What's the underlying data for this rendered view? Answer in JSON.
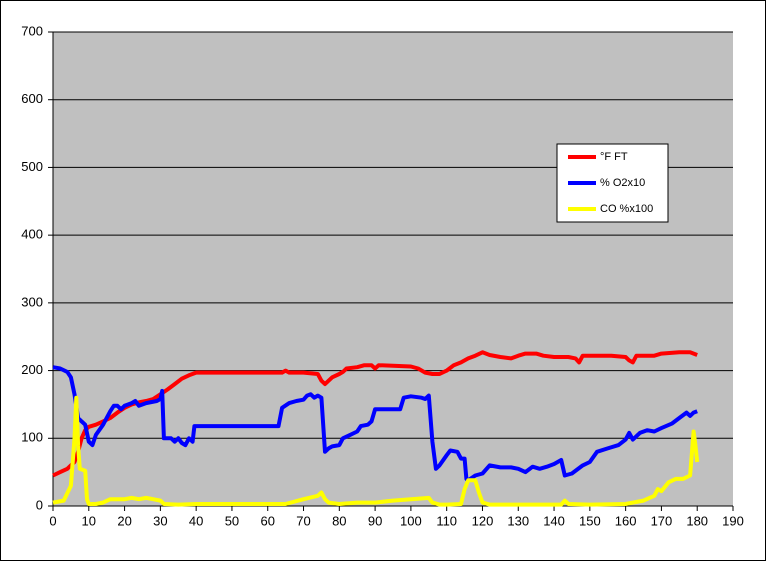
{
  "chart_data": {
    "type": "line",
    "xlim": [
      0,
      190
    ],
    "xticks": [
      0,
      10,
      20,
      30,
      40,
      50,
      60,
      70,
      80,
      90,
      100,
      110,
      120,
      130,
      140,
      150,
      160,
      170,
      180,
      190
    ],
    "ylim": [
      0,
      700
    ],
    "yticks": [
      0,
      100,
      200,
      300,
      400,
      500,
      600,
      700
    ],
    "grid": true,
    "legend": "right",
    "series": [
      {
        "name": "°F FT",
        "color": "#ff0000",
        "x": [
          0,
          2,
          4,
          6,
          7,
          8,
          9,
          10,
          12,
          14,
          16,
          18,
          20,
          22,
          24,
          26,
          28,
          30,
          32,
          34,
          36,
          38,
          40,
          45,
          50,
          55,
          60,
          64,
          65,
          66,
          70,
          74,
          75,
          76,
          77,
          78,
          80,
          81,
          82,
          85,
          87,
          89,
          90,
          91,
          95,
          100,
          102,
          104,
          106,
          108,
          110,
          112,
          114,
          116,
          118,
          120,
          122,
          125,
          128,
          130,
          132,
          135,
          137,
          140,
          144,
          146,
          147,
          148,
          152,
          156,
          160,
          161,
          162,
          163,
          168,
          170,
          175,
          178,
          180
        ],
        "values": [
          45,
          50,
          55,
          65,
          80,
          100,
          112,
          117,
          120,
          125,
          130,
          138,
          145,
          150,
          153,
          155,
          158,
          165,
          172,
          180,
          188,
          193,
          197,
          197,
          197,
          197,
          197,
          197,
          200,
          197,
          197,
          195,
          185,
          180,
          185,
          190,
          195,
          198,
          203,
          205,
          208,
          208,
          203,
          208,
          207,
          206,
          203,
          197,
          195,
          195,
          200,
          208,
          212,
          218,
          222,
          227,
          223,
          220,
          218,
          222,
          225,
          225,
          222,
          220,
          220,
          218,
          212,
          222,
          222,
          222,
          220,
          215,
          212,
          222,
          222,
          225,
          227,
          227,
          223
        ]
      },
      {
        "name": "% O2x10",
        "color": "#0000ff",
        "x": [
          0,
          2,
          4,
          5,
          6,
          7,
          8,
          9,
          10,
          11,
          12,
          14,
          16,
          17,
          18,
          19,
          20,
          22,
          23,
          24,
          26,
          29,
          30,
          30.5,
          31,
          33,
          34,
          35,
          36,
          37,
          38,
          39,
          39.5,
          40,
          50,
          60,
          63,
          64,
          66,
          68,
          70,
          71,
          72,
          73,
          74,
          75,
          76,
          77,
          78,
          80,
          81,
          83,
          85,
          86,
          88,
          89,
          90,
          95,
          97,
          98,
          100,
          103,
          104,
          105,
          106,
          107,
          108,
          110,
          111,
          113,
          114,
          115,
          115.5,
          116,
          118,
          120,
          122,
          125,
          128,
          130,
          132,
          134,
          136,
          138,
          140,
          142,
          143,
          145,
          148,
          150,
          152,
          155,
          158,
          160,
          161,
          162,
          164,
          166,
          168,
          170,
          173,
          175,
          177,
          178,
          179,
          180
        ],
        "values": [
          205,
          203,
          198,
          190,
          165,
          130,
          125,
          120,
          95,
          90,
          105,
          120,
          140,
          148,
          148,
          143,
          148,
          152,
          155,
          148,
          152,
          155,
          158,
          170,
          100,
          100,
          95,
          100,
          93,
          90,
          100,
          95,
          118,
          118,
          118,
          118,
          118,
          145,
          152,
          155,
          157,
          163,
          165,
          160,
          163,
          160,
          80,
          85,
          88,
          90,
          100,
          105,
          110,
          118,
          120,
          125,
          143,
          143,
          143,
          160,
          162,
          160,
          158,
          163,
          95,
          55,
          60,
          75,
          82,
          80,
          70,
          70,
          40,
          38,
          45,
          48,
          60,
          57,
          57,
          55,
          50,
          58,
          55,
          58,
          62,
          68,
          45,
          48,
          60,
          65,
          80,
          85,
          90,
          98,
          108,
          98,
          108,
          112,
          110,
          115,
          122,
          130,
          138,
          133,
          138,
          140
        ]
      },
      {
        "name": "CO %x100",
        "color": "#ffff00",
        "x": [
          0,
          3,
          5,
          6,
          6.5,
          7,
          7.5,
          9,
          9.5,
          10,
          12,
          14,
          16,
          18,
          20,
          22,
          24,
          26,
          28,
          30,
          31,
          35,
          40,
          50,
          60,
          65,
          70,
          74,
          75,
          76,
          77,
          80,
          85,
          90,
          95,
          100,
          105,
          106,
          108,
          110,
          114,
          115,
          116,
          118,
          119,
          120,
          122,
          130,
          142,
          143,
          144,
          150,
          160,
          165,
          168,
          169,
          170,
          172,
          174,
          176,
          178,
          179,
          179.5,
          180
        ],
        "values": [
          5,
          8,
          30,
          100,
          160,
          90,
          55,
          52,
          10,
          3,
          3,
          5,
          10,
          10,
          10,
          12,
          10,
          12,
          10,
          8,
          3,
          2,
          3,
          3,
          3,
          3,
          10,
          15,
          20,
          10,
          5,
          3,
          5,
          5,
          8,
          10,
          12,
          5,
          2,
          2,
          3,
          25,
          38,
          38,
          20,
          5,
          2,
          2,
          2,
          8,
          3,
          2,
          3,
          8,
          15,
          25,
          22,
          35,
          40,
          40,
          45,
          110,
          90,
          65
        ]
      }
    ]
  }
}
